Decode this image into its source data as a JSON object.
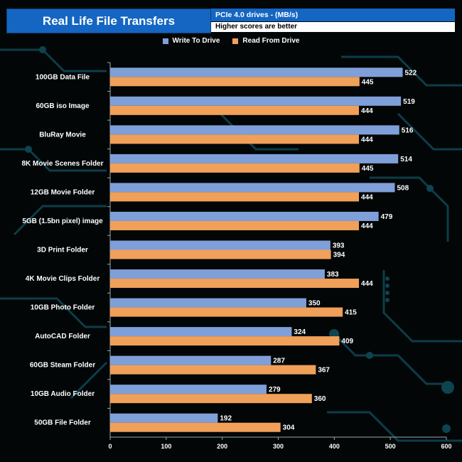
{
  "header": {
    "title": "Real Life File Transfers",
    "subtitle": "PCIe 4.0 drives - (MB/s)",
    "note": "Higher scores are better"
  },
  "colors": {
    "write": "#7f9fd9",
    "read": "#f0a058",
    "background": "#030607",
    "circuit": "#0d4450"
  },
  "chart_data": {
    "type": "bar",
    "orientation": "horizontal",
    "categories": [
      "100GB Data File",
      "60GB iso Image",
      "BluRay Movie",
      "8K Movie Scenes Folder",
      "12GB Movie Folder",
      "5GB (1.5bn pixel) image",
      "3D Print Folder",
      "4K Movie Clips Folder",
      "10GB Photo Folder",
      "AutoCAD Folder",
      "60GB Steam Folder",
      "10GB Audio Folder",
      "50GB File Folder"
    ],
    "series": [
      {
        "name": "Write To  Drive",
        "values": [
          522,
          519,
          516,
          514,
          508,
          479,
          393,
          383,
          350,
          324,
          287,
          279,
          192
        ]
      },
      {
        "name": "Read From  Drive",
        "values": [
          445,
          444,
          444,
          445,
          444,
          444,
          394,
          444,
          415,
          409,
          367,
          360,
          304
        ]
      }
    ],
    "xlim": [
      0,
      600
    ],
    "xticks": [
      0,
      100,
      200,
      300,
      400,
      500,
      600
    ],
    "legend_position": "top-center",
    "grid": false
  }
}
